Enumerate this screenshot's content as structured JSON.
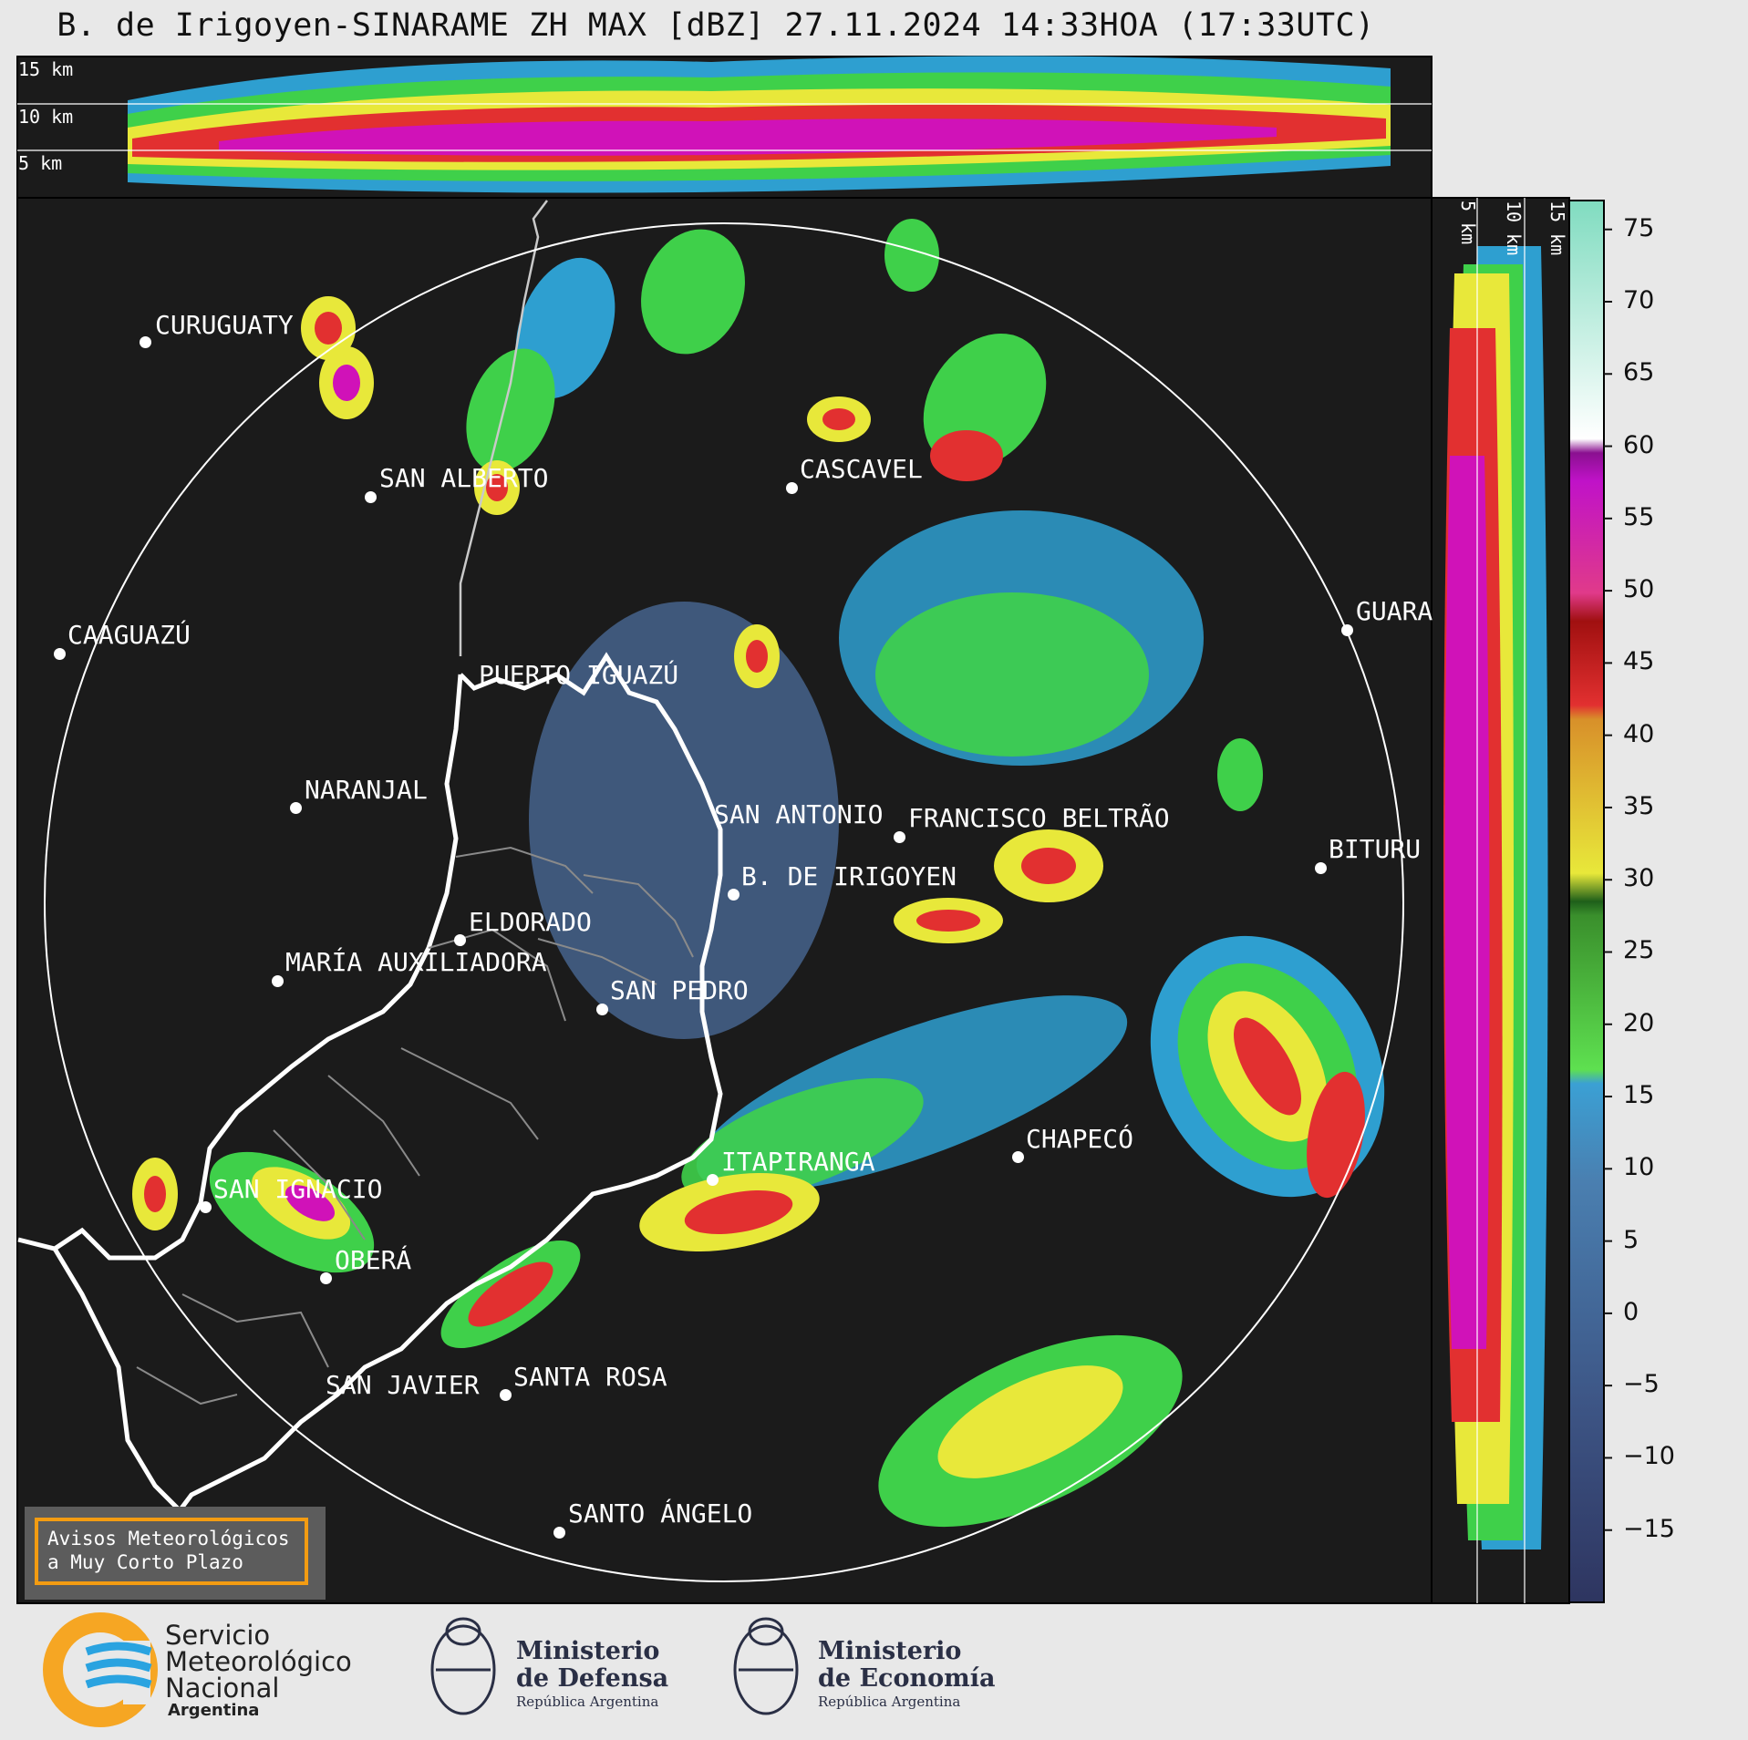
{
  "title": "B. de Irigoyen-SINARAME ZH MAX [dBZ] 27.11.2024 14:33HOA (17:33UTC)",
  "height_labels_top": [
    "15 km",
    "10 km",
    "5 km"
  ],
  "height_labels_side": [
    "5 km",
    "10 km",
    "15 km"
  ],
  "colorbar": {
    "unit": "dBZ",
    "ticks": [
      "75",
      "70",
      "65",
      "60",
      "55",
      "50",
      "45",
      "40",
      "35",
      "30",
      "25",
      "20",
      "15",
      "10",
      "5",
      "0",
      "−5",
      "−10",
      "−15"
    ],
    "range": [
      -20,
      77
    ]
  },
  "cities": [
    {
      "name": "CURUGUATY",
      "dot": true
    },
    {
      "name": "SAN ALBERTO",
      "dot": true
    },
    {
      "name": "CASCAVEL",
      "dot": true
    },
    {
      "name": "CAAGUAZÚ",
      "dot": true
    },
    {
      "name": "GUARA",
      "dot": true
    },
    {
      "name": "PUERTO IGUAZÚ",
      "dot": false
    },
    {
      "name": "NARANJAL",
      "dot": true
    },
    {
      "name": "SAN ANTONIO",
      "dot": false
    },
    {
      "name": "FRANCISCO BELTRÃO",
      "dot": true
    },
    {
      "name": "BITURU",
      "dot": true
    },
    {
      "name": "B. DE IRIGOYEN",
      "dot": true
    },
    {
      "name": "ELDORADO",
      "dot": true
    },
    {
      "name": "MARÍA AUXILIADORA",
      "dot": true
    },
    {
      "name": "SAN PEDRO",
      "dot": true
    },
    {
      "name": "ITAPIRANGA",
      "dot": true
    },
    {
      "name": "CHAPECÓ",
      "dot": true
    },
    {
      "name": "SAN IGNACIO",
      "dot": true
    },
    {
      "name": "OBERÁ",
      "dot": true
    },
    {
      "name": "SAN JAVIER",
      "dot": false
    },
    {
      "name": "SANTA ROSA",
      "dot": true
    },
    {
      "name": "SANTO ÁNGELO",
      "dot": true
    }
  ],
  "warning": {
    "line1": "Avisos Meteorológicos",
    "line2": "a Muy Corto Plazo"
  },
  "logos": {
    "smn": [
      "Servicio",
      "Meteorológico",
      "Nacional",
      "Argentina"
    ],
    "defensa": [
      "Ministerio",
      "de Defensa",
      "República Argentina"
    ],
    "economia": [
      "Ministerio",
      "de Economía",
      "República Argentina"
    ]
  },
  "colors": {
    "background": "#1b1b1b",
    "accent": "#f39c12",
    "smn_blue": "#2aa3e0",
    "smn_orange": "#f6a623"
  }
}
